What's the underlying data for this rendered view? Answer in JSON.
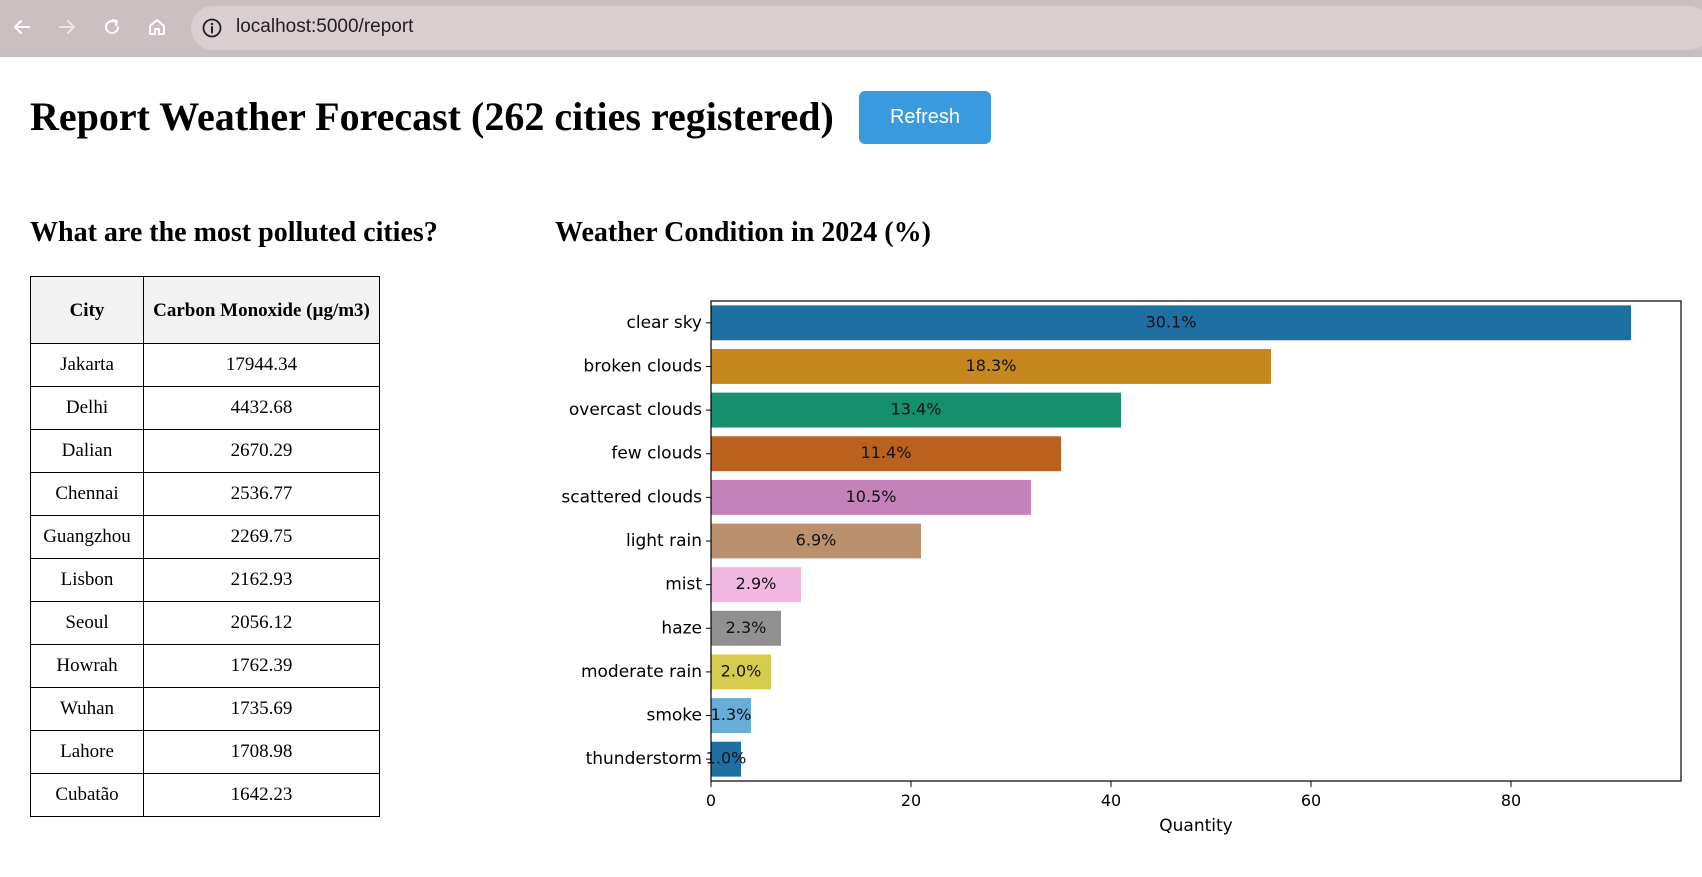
{
  "browser": {
    "url": "localhost:5000/report"
  },
  "page": {
    "title": "Report Weather Forecast (262 cities registered)",
    "refresh_label": "Refresh"
  },
  "pollution": {
    "heading": "What are the most polluted cities?",
    "columns": [
      "City",
      "Carbon Monoxide (µg/m3)"
    ],
    "rows": [
      [
        "Jakarta",
        "17944.34"
      ],
      [
        "Delhi",
        "4432.68"
      ],
      [
        "Dalian",
        "2670.29"
      ],
      [
        "Chennai",
        "2536.77"
      ],
      [
        "Guangzhou",
        "2269.75"
      ],
      [
        "Lisbon",
        "2162.93"
      ],
      [
        "Seoul",
        "2056.12"
      ],
      [
        "Howrah",
        "1762.39"
      ],
      [
        "Wuhan",
        "1735.69"
      ],
      [
        "Lahore",
        "1708.98"
      ],
      [
        "Cubatão",
        "1642.23"
      ]
    ]
  },
  "weather": {
    "heading": "Weather Condition in 2024 (%)"
  },
  "chart_data": {
    "type": "bar",
    "orientation": "horizontal",
    "categories": [
      "clear sky",
      "broken clouds",
      "overcast clouds",
      "few clouds",
      "scattered clouds",
      "light rain",
      "mist",
      "haze",
      "moderate rain",
      "smoke",
      "thunderstorm"
    ],
    "values": [
      92,
      56,
      41,
      35,
      32,
      21,
      9,
      7,
      6,
      4,
      3
    ],
    "labels": [
      "30.1%",
      "18.3%",
      "13.4%",
      "11.4%",
      "10.5%",
      "6.9%",
      "2.9%",
      "2.3%",
      "2.0%",
      "1.3%",
      "1.0%"
    ],
    "colors": [
      "#1f70a2",
      "#c6871f",
      "#168f6d",
      "#ba6120",
      "#c582b8",
      "#bb906c",
      "#f0b7e0",
      "#909090",
      "#d6cb4d",
      "#68add8",
      "#1f70a2"
    ],
    "xlabel": "Quantity",
    "ylabel": "",
    "xlim": [
      0,
      97
    ],
    "xticks": [
      0,
      20,
      40,
      60,
      80
    ],
    "grid": false
  }
}
